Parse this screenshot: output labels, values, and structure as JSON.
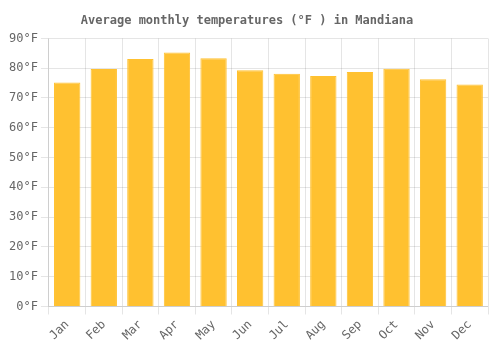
{
  "chart_data": {
    "type": "bar",
    "title": "Average monthly temperatures (°F ) in Mandiana",
    "categories": [
      "Jan",
      "Feb",
      "Mar",
      "Apr",
      "May",
      "Jun",
      "Jul",
      "Aug",
      "Sep",
      "Oct",
      "Nov",
      "Dec"
    ],
    "values": [
      75.2,
      79.7,
      83.1,
      85.3,
      83.3,
      79.3,
      78.1,
      77.4,
      78.7,
      79.8,
      76.3,
      74.5
    ],
    "color": "#FFC130",
    "ylim": [
      0,
      90
    ],
    "yticks": [
      {
        "value": 0,
        "label": "0°F"
      },
      {
        "value": 10,
        "label": "10°F"
      },
      {
        "value": 20,
        "label": "20°F"
      },
      {
        "value": 30,
        "label": "30°F"
      },
      {
        "value": 40,
        "label": "40°F"
      },
      {
        "value": 50,
        "label": "50°F"
      },
      {
        "value": 60,
        "label": "60°F"
      },
      {
        "value": 70,
        "label": "70°F"
      },
      {
        "value": 80,
        "label": "80°F"
      },
      {
        "value": 90,
        "label": "90°F"
      }
    ],
    "grid": true
  }
}
